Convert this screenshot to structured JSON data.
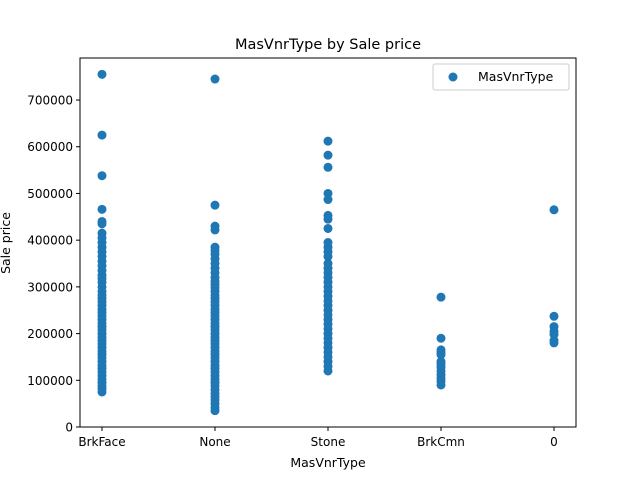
{
  "chart_data": {
    "type": "scatter",
    "title": "MasVnrType by Sale price",
    "xlabel": "MasVnrType",
    "ylabel": "Sale price",
    "categories": [
      "BrkFace",
      "None",
      "Stone",
      "BrkCmn",
      "0"
    ],
    "ylim": [
      0,
      790000
    ],
    "yticks": [
      0,
      100000,
      200000,
      300000,
      400000,
      500000,
      600000,
      700000
    ],
    "grid": false,
    "legend": {
      "position": "top-right",
      "entries": [
        "MasVnrType"
      ]
    },
    "series": [
      {
        "name": "MasVnrType",
        "color": "#1f77b4",
        "points": {
          "BrkFace": [
            755000,
            625000,
            538000,
            466000,
            440000,
            435000,
            415000,
            405000,
            395000,
            385000,
            375000,
            365000,
            355000,
            345000,
            335000,
            325000,
            318000,
            310000,
            300000,
            290000,
            282000,
            275000,
            268000,
            260000,
            252000,
            245000,
            238000,
            230000,
            222000,
            215000,
            208000,
            200000,
            192000,
            185000,
            178000,
            170000,
            162000,
            155000,
            148000,
            140000,
            132000,
            125000,
            118000,
            110000,
            102000,
            95000,
            88000,
            82000,
            75000
          ],
          "None": [
            745000,
            475000,
            430000,
            422000,
            385000,
            378000,
            370000,
            360000,
            350000,
            340000,
            330000,
            320000,
            312000,
            305000,
            298000,
            290000,
            282000,
            275000,
            268000,
            260000,
            252000,
            245000,
            238000,
            230000,
            222000,
            215000,
            208000,
            200000,
            192000,
            185000,
            178000,
            170000,
            162000,
            155000,
            148000,
            140000,
            132000,
            125000,
            118000,
            110000,
            102000,
            95000,
            88000,
            80000,
            72000,
            65000,
            58000,
            50000,
            42000,
            35000
          ],
          "Stone": [
            612000,
            582000,
            556000,
            500000,
            487000,
            453000,
            445000,
            425000,
            395000,
            385000,
            375000,
            365000,
            350000,
            340000,
            330000,
            320000,
            310000,
            300000,
            290000,
            280000,
            270000,
            260000,
            250000,
            240000,
            230000,
            220000,
            210000,
            200000,
            190000,
            180000,
            170000,
            160000,
            150000,
            140000,
            130000,
            120000
          ],
          "BrkCmn": [
            278000,
            190000,
            165000,
            160000,
            155000,
            140000,
            135000,
            128000,
            120000,
            112000,
            105000,
            98000,
            90000
          ],
          "0": [
            465000,
            237000,
            215000,
            205000,
            198000,
            185000,
            180000
          ]
        }
      }
    ]
  }
}
